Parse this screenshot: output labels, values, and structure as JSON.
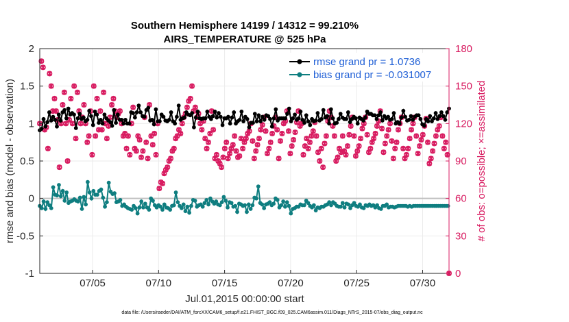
{
  "chart_data": {
    "type": "line",
    "title_line1": "Southern Hemisphere 14199 / 14312 = 99.210%",
    "title_line2": "AIRS_TEMPERATURE @ 525 hPa",
    "ylabel_left": "rmse and bias (model - observation)",
    "ylabel_right": "# of obs: o=possible; ×=assimilated",
    "xlabel": "Jul.01,2015 00:00:00 start",
    "xlim": [
      1.0,
      32.0
    ],
    "ylim_left": [
      -1,
      2
    ],
    "ylim_right": [
      0,
      180
    ],
    "yticks_left": [
      -1,
      -0.5,
      0,
      0.5,
      1,
      1.5,
      2
    ],
    "ytick_labels_left": [
      "-1",
      "-0.5",
      "0",
      "0.5",
      "1",
      "1.5",
      "2"
    ],
    "yticks_right": [
      0,
      30,
      60,
      90,
      120,
      150,
      180
    ],
    "ytick_labels_right": [
      "0",
      "30",
      "60",
      "90",
      "120",
      "150",
      "180"
    ],
    "xticks": [
      5,
      10,
      15,
      20,
      25,
      30
    ],
    "xtick_labels": [
      "07/05",
      "07/10",
      "07/15",
      "07/20",
      "07/25",
      "07/30"
    ],
    "grid": true,
    "legend_position": "top-right",
    "colors": {
      "rmse": "#000000",
      "bias": "#0f7e80",
      "obs": "#d81b60",
      "zero_line": "#bfbfbf",
      "grid": "#ebebeb",
      "legend_text": "#1f5fd6"
    },
    "series": [
      {
        "name": "rmse grand pr = 1.0736",
        "axis": "left",
        "values": [
          0.91,
          1.04,
          0.93,
          0.99,
          1.06,
          1.0,
          0.96,
          1.09,
          1.02,
          1.05,
          1.15,
          1.1,
          1.04,
          1.18,
          1.09,
          1.08,
          1.05,
          0.99,
          0.96,
          1.08,
          1.12,
          1.14,
          1.04,
          1.09,
          1.15,
          1.13,
          1.18,
          1.06,
          1.07,
          1.11,
          1.2,
          1.1,
          1.12,
          1.05,
          1.14,
          1.2,
          1.12,
          1.08,
          0.94,
          1.02,
          1.07,
          1.14,
          1.13,
          1.2,
          1.06,
          0.95,
          1.08,
          1.13,
          1.03,
          1.1,
          1.05,
          1.0,
          1.17,
          0.99,
          1.1,
          1.18,
          0.98,
          1.04,
          1.16,
          1.04,
          1.12,
          1.1,
          1.01,
          1.15,
          1.05,
          1.06,
          1.0,
          0.96,
          1.12,
          1.16,
          1.07,
          1.1,
          1.04,
          1.16,
          1.02,
          1.05,
          0.97,
          1.1,
          1.18,
          1.08,
          1.01,
          0.94,
          1.12,
          1.16,
          1.05,
          0.93,
          1.05,
          1.08,
          1.0,
          1.16,
          1.05,
          1.05,
          1.0,
          0.97,
          1.0,
          0.99,
          1.15,
          1.04,
          1.14,
          1.03,
          1.08,
          0.99,
          1.15,
          1.12,
          1.24,
          1.04,
          1.15,
          1.03,
          1.1,
          1.12,
          1.09,
          1.05,
          1.18,
          1.13,
          1.21,
          1.06,
          1.04,
          1.15,
          1.05,
          1.12,
          0.99,
          1.09,
          1.19,
          1.1,
          1.03,
          0.97,
          1.03,
          1.09,
          1.12,
          1.06,
          1.09,
          1.09,
          1.04,
          1.18,
          1.03,
          1.1,
          1.05,
          1.11,
          1.15,
          1.1,
          1.03,
          1.06,
          1.0,
          1.23,
          1.09,
          1.17,
          1.24,
          0.97,
          1.05,
          1.08,
          1.07,
          1.19,
          1.08,
          1.06,
          1.15,
          1.13,
          1.12,
          1.07,
          1.11,
          1.08,
          1.14,
          1.04,
          0.95,
          1.02,
          1.08,
          0.97,
          1.16,
          1.06,
          1.07,
          1.16,
          1.06,
          1.04,
          1.07,
          1.19,
          1.07,
          1.06,
          1.16,
          1.02,
          1.09,
          1.05,
          1.06,
          1.1,
          1.1,
          1.04,
          1.16,
          1.08,
          1.08,
          1.11,
          1.14,
          1.05,
          1.09,
          1.02,
          0.98,
          1.1,
          1.07,
          1.14,
          1.07,
          1.04,
          1.09,
          1.05,
          1.0,
          1.11,
          1.08,
          1.02,
          1.15,
          1.08,
          1.0,
          1.09,
          1.03,
          1.05,
          1.05,
          1.01,
          1.16,
          1.1,
          1.03,
          0.97,
          1.09,
          1.01,
          1.06,
          1.12,
          0.95,
          1.05,
          1.01,
          0.97,
          1.01,
          1.07,
          1.13,
          1.08,
          1.03,
          1.09,
          1.11,
          1.02,
          1.03,
          1.11,
          1.09,
          1.2,
          1.05,
          1.17,
          1.11,
          1.19,
          1.1,
          1.1,
          1.06,
          1.1,
          0.96,
          1.05,
          1.07,
          1.07,
          1.19,
          1.07,
          1.04,
          1.03,
          1.07,
          0.98,
          1.07,
          1.15,
          1.07,
          1.04,
          1.07,
          1.1,
          1.13,
          1.04,
          1.2,
          1.09,
          1.03,
          1.14,
          1.07,
          1.15,
          1.12,
          1.06,
          1.05,
          1.05,
          1.07,
          1.15,
          1.16,
          1.1,
          1.05,
          1.03,
          1.01,
          1.05,
          1.11,
          1.06,
          1.03,
          1.05,
          0.98,
          1.17,
          1.06,
          1.12,
          1.03,
          1.1,
          1.04,
          1.07,
          1.14,
          1.09,
          1.04,
          1.13,
          1.06,
          1.06,
          1.18,
          1.03,
          1.08,
          1.13,
          1.1,
          1.12,
          1.0,
          1.04,
          1.19,
          1.11,
          1.07,
          1.18,
          1.0,
          1.13,
          1.01,
          1.09,
          1.06,
          1.15,
          1.13,
          1.02,
          1.08,
          1.11,
          1.06,
          1.15,
          1.06,
          1.03,
          1.15,
          1.12,
          1.02,
          1.11,
          1.06,
          1.12,
          1.09,
          1.14,
          1.07,
          1.02,
          1.0,
          1.09,
          1.08,
          1.1,
          1.06,
          1.15,
          1.04,
          1.06,
          1.08,
          1.0,
          1.16,
          1.1,
          1.13,
          1.05,
          1.13,
          1.03,
          1.11,
          1.1,
          1.11,
          1.08,
          1.06,
          1.01,
          1.11,
          1.13,
          1.15,
          1.0,
          1.04,
          1.12,
          1.1,
          1.07,
          1.07,
          1.1,
          1.09,
          1.03,
          1.05,
          1.1,
          1.06,
          1.08,
          1.14,
          1.13,
          1.0,
          1.09,
          1.02,
          1.08,
          1.0,
          1.1,
          1.08,
          1.04,
          1.17,
          1.12,
          1.09,
          1.0,
          1.04,
          1.16,
          1.05,
          1.14,
          1.1,
          1.01,
          1.05,
          1.06,
          1.09,
          1.09,
          1.11,
          1.12,
          1.11,
          0.95,
          1.06,
          1.17,
          0.99,
          1.07,
          0.97,
          1.09,
          1.06,
          1.05,
          1.03,
          1.05,
          1.1,
          1.05,
          1.03,
          1.04,
          1.07,
          1.07,
          1.14,
          1.12,
          1.06,
          1.04,
          1.1,
          1.14,
          1.15,
          0.95,
          1.1,
          1.15,
          1.05,
          0.99,
          1.15,
          1.09,
          1.2
        ]
      },
      {
        "name": "bias grand pr = -0.031007",
        "axis": "left",
        "values": [
          -0.1,
          -0.07,
          -0.13,
          -0.02,
          -0.04,
          -0.08,
          -0.14,
          0.05,
          -0.05,
          0.0,
          -0.09,
          -0.17,
          -0.13,
          -0.05,
          0.15,
          0.06,
          0.05,
          0.21,
          0.04,
          -0.06,
          0.18,
          0.07,
          0.03,
          -0.02,
          0.1,
          0.05,
          -0.03,
          0.09,
          0.08,
          0.0,
          -0.06,
          0.15,
          -0.04,
          -0.02,
          -0.03,
          -0.09,
          -0.01,
          -0.1,
          -0.03,
          0.02,
          -0.04,
          -0.08,
          0.01,
          0.03,
          -0.14,
          -0.05,
          0.02,
          -0.02,
          -0.08,
          0.11,
          0.22,
          0.05,
          0.08,
          0.27,
          0.0,
          0.27,
          0.1,
          -0.07,
          0.05,
          0.12,
          0.05,
          -0.01,
          0.1,
          0.08,
          0.12,
          -0.02,
          0.01,
          -0.07,
          -0.11,
          0.11,
          -0.05,
          -0.02,
          0.21,
          -0.08,
          0.09,
          -0.03,
          0.06,
          0.04,
          0.07,
          0.15,
          -0.05,
          0.02,
          -0.04,
          0.12,
          -0.02,
          0.0,
          -0.1,
          -0.07,
          -0.08,
          -0.09,
          -0.11,
          -0.12,
          -0.13,
          -0.1,
          -0.14,
          -0.14,
          -0.15,
          -0.14,
          -0.1,
          -0.04,
          -0.13,
          -0.19,
          -0.2,
          -0.12,
          -0.12,
          -0.1,
          -0.04,
          -0.04,
          -0.12,
          -0.07,
          -0.07,
          -0.03,
          -0.12,
          -0.13,
          -0.15,
          -0.05,
          0.0,
          -0.11,
          -0.03,
          -0.05,
          -0.09,
          -0.07,
          -0.12,
          -0.1,
          -0.09,
          -0.16,
          -0.11,
          -0.08,
          -0.15,
          -0.12,
          -0.08,
          -0.13,
          -0.12,
          -0.12,
          -0.13,
          -0.13,
          -0.15,
          -0.12,
          -0.1,
          -0.14,
          -0.09,
          -0.1,
          0.08,
          -0.04,
          -0.05,
          -0.05,
          -0.1,
          -0.12,
          -0.13,
          -0.1,
          -0.08,
          -0.11,
          -0.17,
          -0.26,
          -0.11,
          -0.14,
          -0.19,
          -0.13,
          -0.1,
          0.04,
          -0.02,
          0.0,
          -0.03,
          -0.01,
          -0.11,
          -0.04,
          -0.09,
          -0.14,
          -0.08,
          -0.07,
          -0.11,
          -0.14,
          -0.06,
          0.04,
          -0.02,
          -0.06,
          -0.08,
          -0.07,
          0.0,
          -0.05,
          -0.04,
          -0.06,
          -0.07,
          -0.06,
          -0.04,
          -0.08,
          -0.08,
          -0.05,
          -0.09,
          -0.12,
          -0.05,
          -0.04,
          0.02,
          -0.12,
          -0.03,
          -0.01,
          -0.12,
          -0.03,
          -0.05,
          -0.1,
          -0.06,
          -0.07,
          -0.11,
          -0.12,
          -0.1,
          -0.13,
          -0.18,
          -0.15,
          -0.07,
          -0.14,
          -0.08,
          -0.06,
          -0.1,
          -0.07,
          -0.09,
          -0.07,
          -0.18,
          -0.08,
          -0.08,
          -0.13,
          -0.14,
          -0.09,
          -0.09,
          -0.05,
          0.01,
          -0.08,
          0.0,
          -0.1,
          0.16,
          -0.05,
          -0.06,
          -0.1,
          -0.08,
          -0.03,
          -0.13,
          -0.12,
          -0.08,
          -0.09,
          -0.07,
          -0.02,
          -0.05,
          -0.12,
          -0.09,
          -0.13,
          -0.07,
          -0.04,
          0.0,
          -0.05,
          -0.02,
          -0.06,
          -0.12,
          -0.16,
          -0.09,
          -0.07,
          -0.04,
          -0.15,
          -0.11,
          -0.13,
          -0.05,
          -0.07,
          -0.1,
          -0.13,
          -0.2,
          -0.07,
          -0.14,
          -0.1,
          -0.13,
          -0.12,
          -0.11,
          -0.13,
          -0.11,
          -0.13,
          -0.08,
          -0.11,
          -0.09,
          -0.13,
          -0.09,
          -0.13,
          -0.03,
          -0.08,
          -0.06,
          -0.06,
          -0.1,
          -0.18,
          -0.12,
          -0.09,
          -0.09,
          -0.12,
          -0.16,
          -0.14,
          -0.12,
          -0.15,
          -0.13,
          -0.06,
          -0.11,
          -0.1,
          -0.11,
          -0.07,
          -0.09,
          -0.14,
          -0.08,
          -0.07,
          -0.05,
          -0.16,
          -0.09,
          -0.06,
          -0.05,
          -0.16,
          -0.07,
          -0.13,
          -0.1,
          -0.07,
          -0.11,
          -0.07,
          -0.11,
          -0.08,
          -0.06,
          -0.1,
          -0.12,
          -0.09,
          -0.07,
          -0.09,
          -0.08,
          -0.07,
          -0.13,
          -0.16,
          -0.09,
          -0.11,
          -0.06,
          -0.09,
          -0.1,
          -0.1,
          -0.11,
          -0.07,
          -0.08,
          -0.09,
          -0.12,
          -0.04,
          -0.13,
          -0.13,
          -0.09,
          -0.09,
          -0.1,
          -0.09,
          -0.08,
          -0.12,
          -0.1,
          -0.12,
          -0.09,
          -0.06,
          -0.12,
          -0.12,
          -0.09,
          -0.08,
          -0.13,
          -0.08,
          -0.14,
          -0.1,
          -0.1,
          -0.11,
          -0.1,
          -0.12,
          -0.08,
          -0.09,
          -0.12,
          -0.1,
          -0.11,
          -0.09,
          -0.11,
          -0.1,
          -0.12,
          -0.09,
          -0.11,
          -0.1,
          -0.1,
          -0.11,
          -0.1,
          -0.1,
          -0.1,
          -0.11,
          -0.1,
          -0.11,
          -0.1,
          -0.1,
          -0.11,
          -0.1,
          -0.1,
          -0.1,
          -0.11,
          -0.1,
          -0.1,
          -0.1,
          -0.1,
          -0.1,
          -0.1,
          -0.1,
          -0.1,
          -0.1,
          -0.1,
          -0.1,
          -0.1,
          -0.1,
          -0.1,
          -0.1,
          -0.1,
          -0.1,
          -0.1,
          -0.1,
          -0.1,
          -0.1,
          -0.1,
          -0.1,
          -0.1,
          -0.1,
          -0.1,
          -0.1,
          -0.1,
          -0.1,
          -0.1,
          -0.1,
          -0.1,
          -0.1,
          -0.1,
          -0.1,
          -0.1,
          -0.1,
          -0.1,
          -0.1
        ]
      }
    ],
    "obs_possible": [
      120,
      170,
      165,
      115,
      117,
      100,
      160,
      150,
      130,
      140,
      130,
      123,
      85,
      120,
      135,
      145,
      120,
      90,
      123,
      140,
      120,
      150,
      108,
      145,
      130,
      120,
      125,
      135,
      120,
      105,
      110,
      130,
      95,
      150,
      110,
      140,
      115,
      130,
      115,
      145,
      120,
      108,
      118,
      125,
      135,
      140,
      130,
      125,
      128,
      130,
      120,
      110,
      112,
      100,
      110,
      95,
      120,
      133,
      100,
      98,
      110,
      107,
      93,
      98,
      125,
      105,
      92,
      135,
      110,
      103,
      112,
      95,
      120,
      68,
      73,
      72,
      80,
      83,
      85,
      90,
      92,
      98,
      100,
      108,
      110,
      115,
      112,
      120,
      125,
      128,
      133,
      138,
      140,
      150,
      130,
      133,
      125,
      128,
      120,
      115,
      122,
      108,
      100,
      105,
      112,
      130,
      115,
      92,
      95,
      90,
      88,
      85,
      93,
      100,
      105,
      92,
      96,
      100,
      103,
      110,
      98,
      93,
      94,
      108,
      100,
      105,
      108,
      112,
      114,
      120,
      106,
      92,
      98,
      103,
      108,
      115,
      119,
      125,
      114,
      96,
      100,
      105,
      112,
      118,
      125,
      115,
      92,
      106,
      112,
      120,
      122,
      130,
      114,
      96,
      102,
      107,
      113,
      121,
      130,
      118,
      120,
      95,
      102,
      108,
      100,
      105,
      110,
      114,
      121,
      110,
      97,
      90,
      100,
      85,
      104,
      110,
      122,
      130,
      125,
      118,
      110,
      90,
      93,
      100,
      97,
      110,
      98,
      95,
      102,
      111,
      118,
      125,
      110,
      94,
      98,
      102,
      108,
      116,
      120,
      125,
      111,
      97,
      100,
      105,
      108,
      112,
      118,
      122,
      130,
      116,
      97,
      104,
      110,
      115,
      120,
      106,
      92,
      100,
      105,
      115,
      120,
      125,
      100,
      92,
      95,
      100,
      108,
      115,
      120,
      125,
      110,
      96,
      102,
      107,
      111,
      118,
      124,
      105,
      88,
      92,
      98,
      104,
      110,
      115,
      118,
      125,
      110,
      100,
      105,
      95,
      0
    ]
  },
  "footer": {
    "data_file": "data file: /Users/raeder/DAI/ATM_forcXX/CAM6_setup/f.e21.FHIST_BGC.f09_025.CAM6assim.011/Diags_NTrS_2015-07/obs_diag_output.nc"
  }
}
